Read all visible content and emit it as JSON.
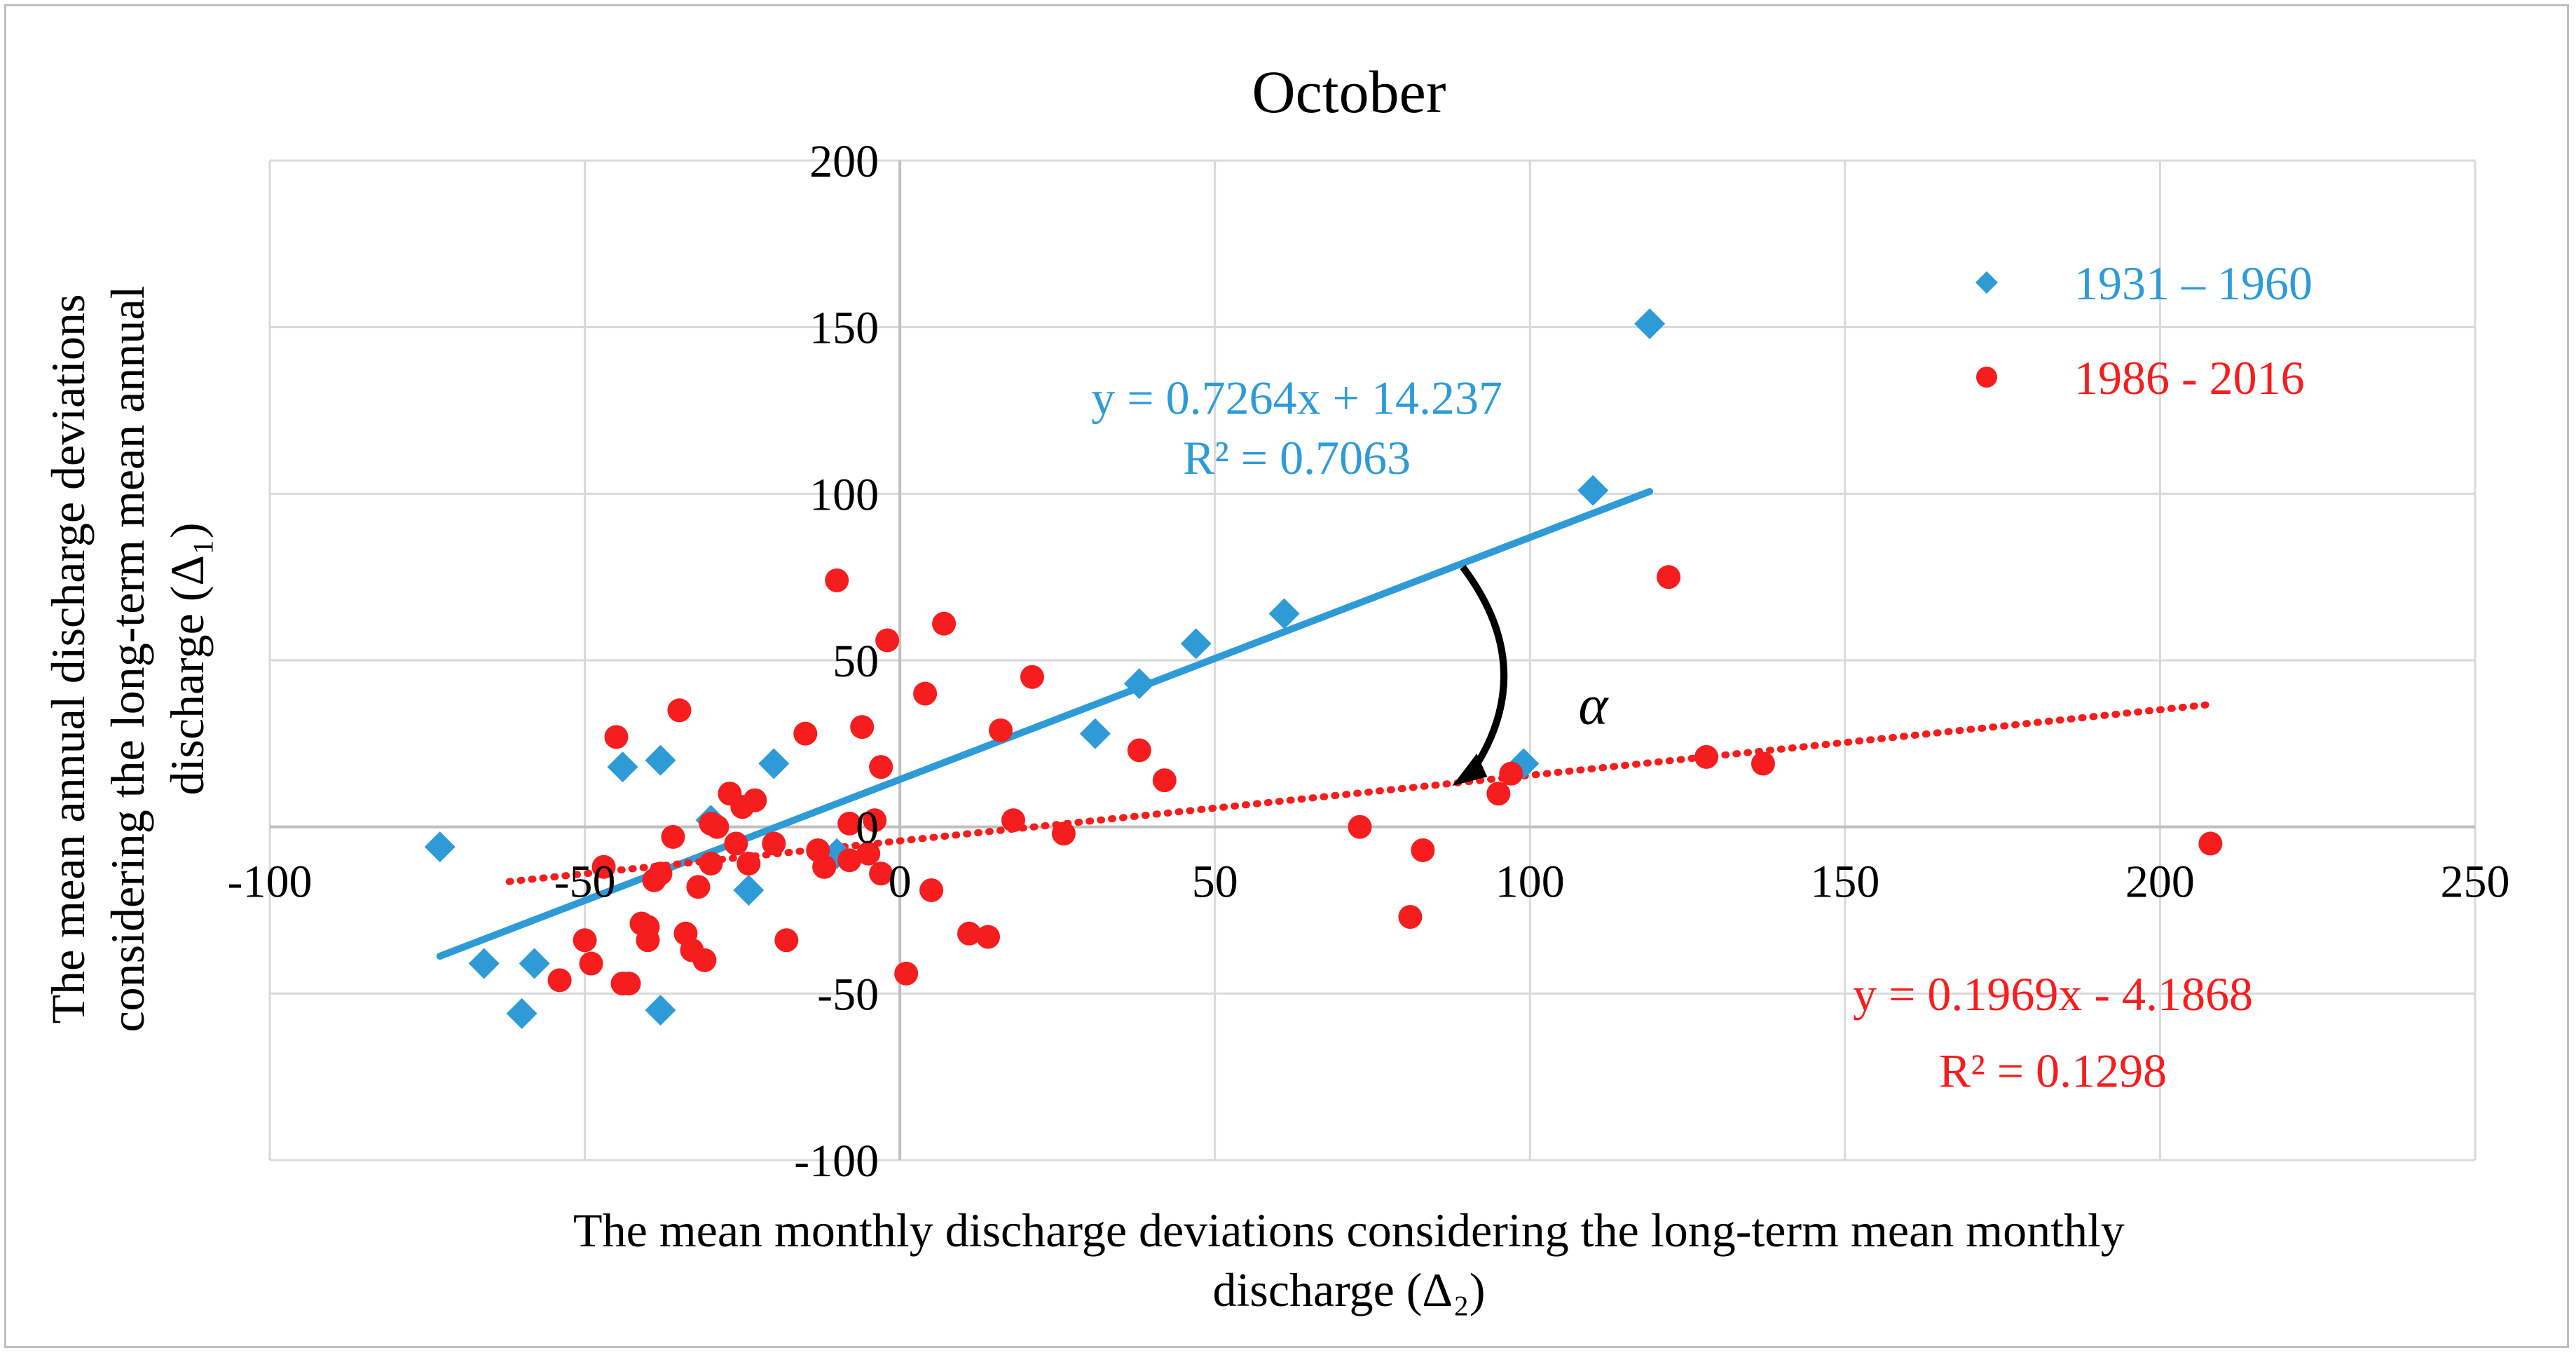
{
  "chart_data": {
    "type": "scatter",
    "title": "October",
    "xlabel_lines": [
      "The mean monthly discharge deviations considering the long-term mean monthly",
      "discharge (Δ₂)"
    ],
    "ylabel_lines": [
      "The mean annual discharge deviations",
      "considering the long-term mean annual",
      "discharge (Δ₁)"
    ],
    "xlim": [
      -100,
      250
    ],
    "ylim": [
      -100,
      200
    ],
    "xticks": [
      -100,
      -50,
      0,
      50,
      100,
      150,
      200,
      250
    ],
    "yticks": [
      -100,
      -50,
      0,
      50,
      100,
      150,
      200
    ],
    "xtick_labels": [
      "-100",
      "-50",
      "0",
      "50",
      "100",
      "150",
      "200",
      "250"
    ],
    "ytick_labels": [
      "-100",
      "-50",
      "0",
      "50",
      "100",
      "150",
      "200"
    ],
    "grid": true,
    "legend_position": "top-right",
    "angle_annotation": "α",
    "series": [
      {
        "name": "1931 – 1960",
        "color": "#2e9bd6",
        "marker": "diamond",
        "x": [
          -73,
          -66,
          -60,
          -58,
          -44,
          -38,
          -38,
          -30,
          -24,
          -20,
          -10,
          31,
          38,
          47,
          61,
          99,
          110,
          119
        ],
        "y": [
          -6,
          -41,
          -56,
          -41,
          18,
          20,
          -55,
          2,
          -19,
          19,
          -8,
          28,
          43,
          55,
          64,
          19,
          101,
          151
        ],
        "trendline": {
          "slope": 0.7264,
          "intercept": 14.237,
          "x_range": [
            -73,
            119
          ],
          "style": "solid",
          "equation": "y = 0.7264x + 14.237",
          "r2": "R² = 0.7063"
        }
      },
      {
        "name": "1986 - 2016",
        "color": "#f51d1d",
        "marker": "circle",
        "x": [
          -54,
          -50,
          -49,
          -47,
          -45,
          -44,
          -43,
          -41,
          -40,
          -40,
          -39,
          -38,
          -36,
          -35,
          -34,
          -33,
          -32,
          -31,
          -30,
          -30,
          -29,
          -27,
          -26,
          -25,
          -24,
          -23,
          -20,
          -18,
          -15,
          -13,
          -12,
          -12,
          -10,
          -8,
          -8,
          -6,
          -5,
          -4,
          -3,
          -3,
          -2,
          1,
          4,
          5,
          7,
          11,
          14,
          16,
          18,
          21,
          26,
          38,
          42,
          73,
          81,
          83,
          95,
          97,
          122,
          128,
          137,
          208
        ],
        "y": [
          -46,
          -34,
          -41,
          -12,
          27,
          -47,
          -47,
          -29,
          -30,
          -34,
          -16,
          -14,
          -3,
          35,
          -32,
          -37,
          -18,
          -40,
          1,
          -11,
          0,
          10,
          -5,
          6,
          -11,
          8,
          -5,
          -34,
          28,
          -7,
          -12,
          -12,
          74,
          -10,
          1,
          30,
          -8,
          2,
          -14,
          18,
          56,
          -44,
          40,
          -19,
          61,
          -32,
          -33,
          29,
          2,
          45,
          -2,
          23,
          14,
          0,
          -27,
          -7,
          10,
          16,
          75,
          21,
          19,
          -5
        ],
        "trendline": {
          "slope": 0.1969,
          "intercept": -4.1868,
          "x_range": [
            -62,
            208
          ],
          "style": "dotted",
          "equation": "y = 0.1969x - 4.1868",
          "r2": "R² = 0.1298"
        }
      }
    ]
  }
}
